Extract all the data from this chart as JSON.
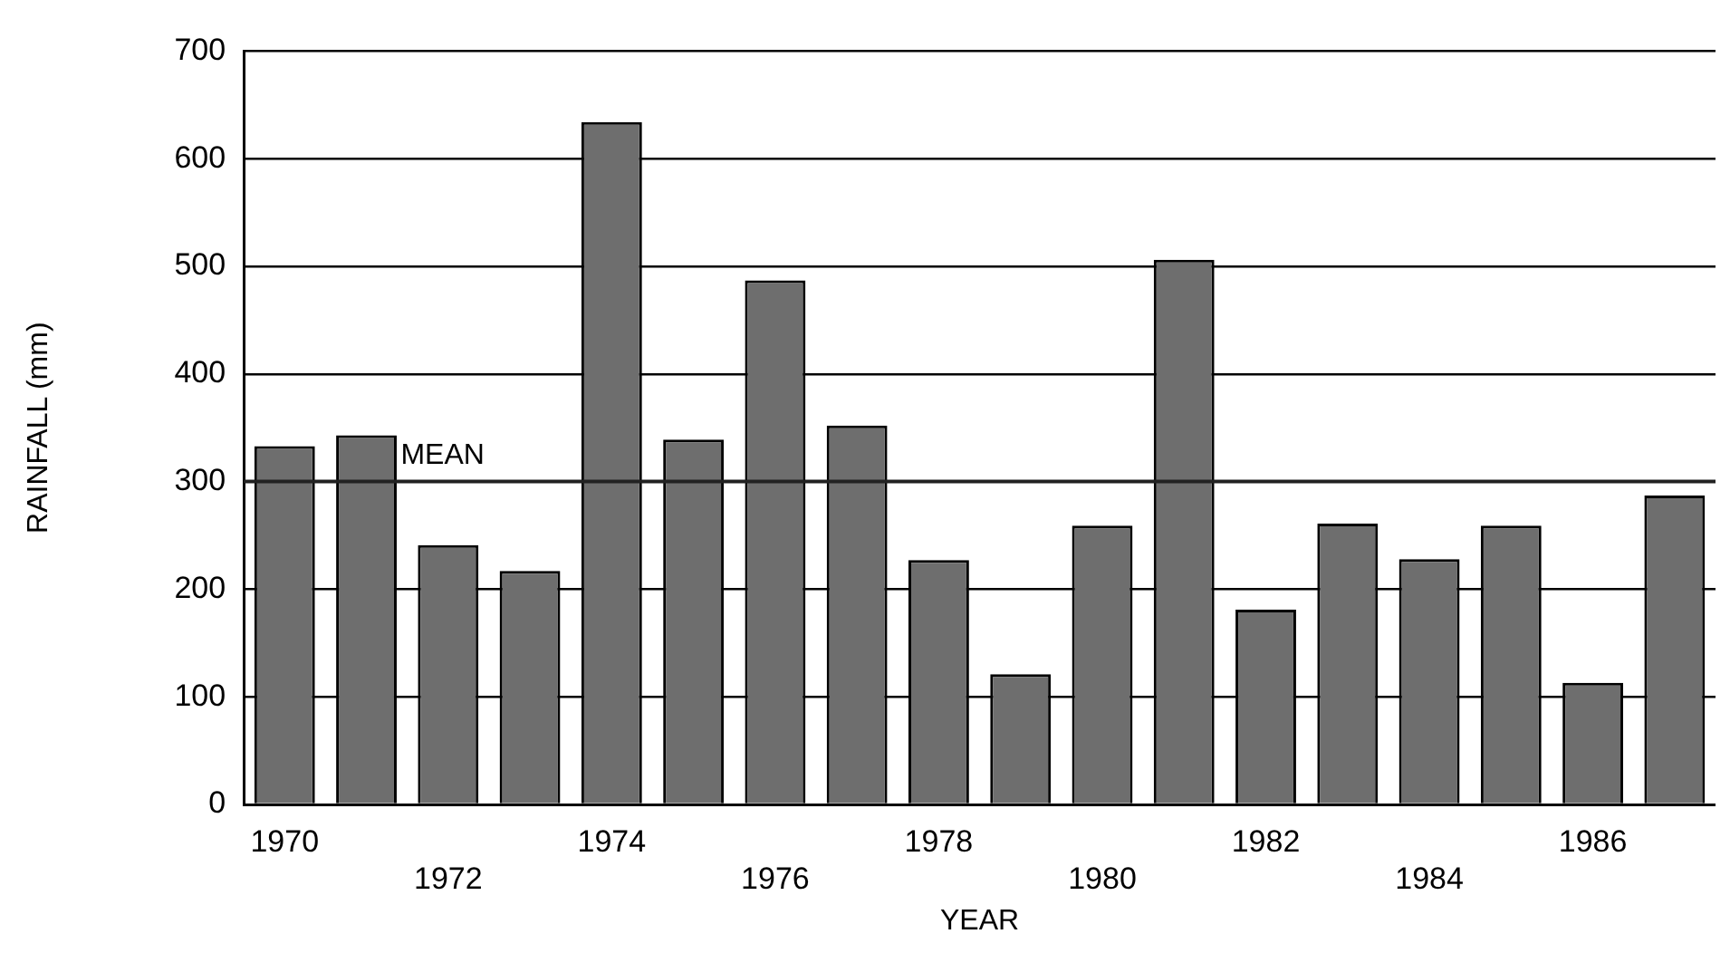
{
  "chart_data": {
    "type": "bar",
    "xlabel": "YEAR",
    "ylabel": "RAINFALL (mm)",
    "categories": [
      "1970",
      null,
      "1972",
      null,
      "1974",
      null,
      "1976",
      null,
      "1978",
      null,
      "1980",
      null,
      "1982",
      null,
      "1984",
      null,
      "1986",
      null
    ],
    "values": [
      333,
      343,
      241,
      217,
      634,
      339,
      487,
      352,
      227,
      121,
      259,
      506,
      181,
      261,
      228,
      259,
      113,
      287
    ],
    "color": "#6e6e6e",
    "ylim": [
      0,
      700
    ],
    "yticks": [
      0,
      100,
      200,
      300,
      400,
      500,
      600,
      700
    ],
    "grid": "y",
    "legend": false,
    "ref_lines": [
      {
        "axis": "y",
        "value": 300,
        "label": "MEAN",
        "color": "#222222"
      }
    ]
  }
}
